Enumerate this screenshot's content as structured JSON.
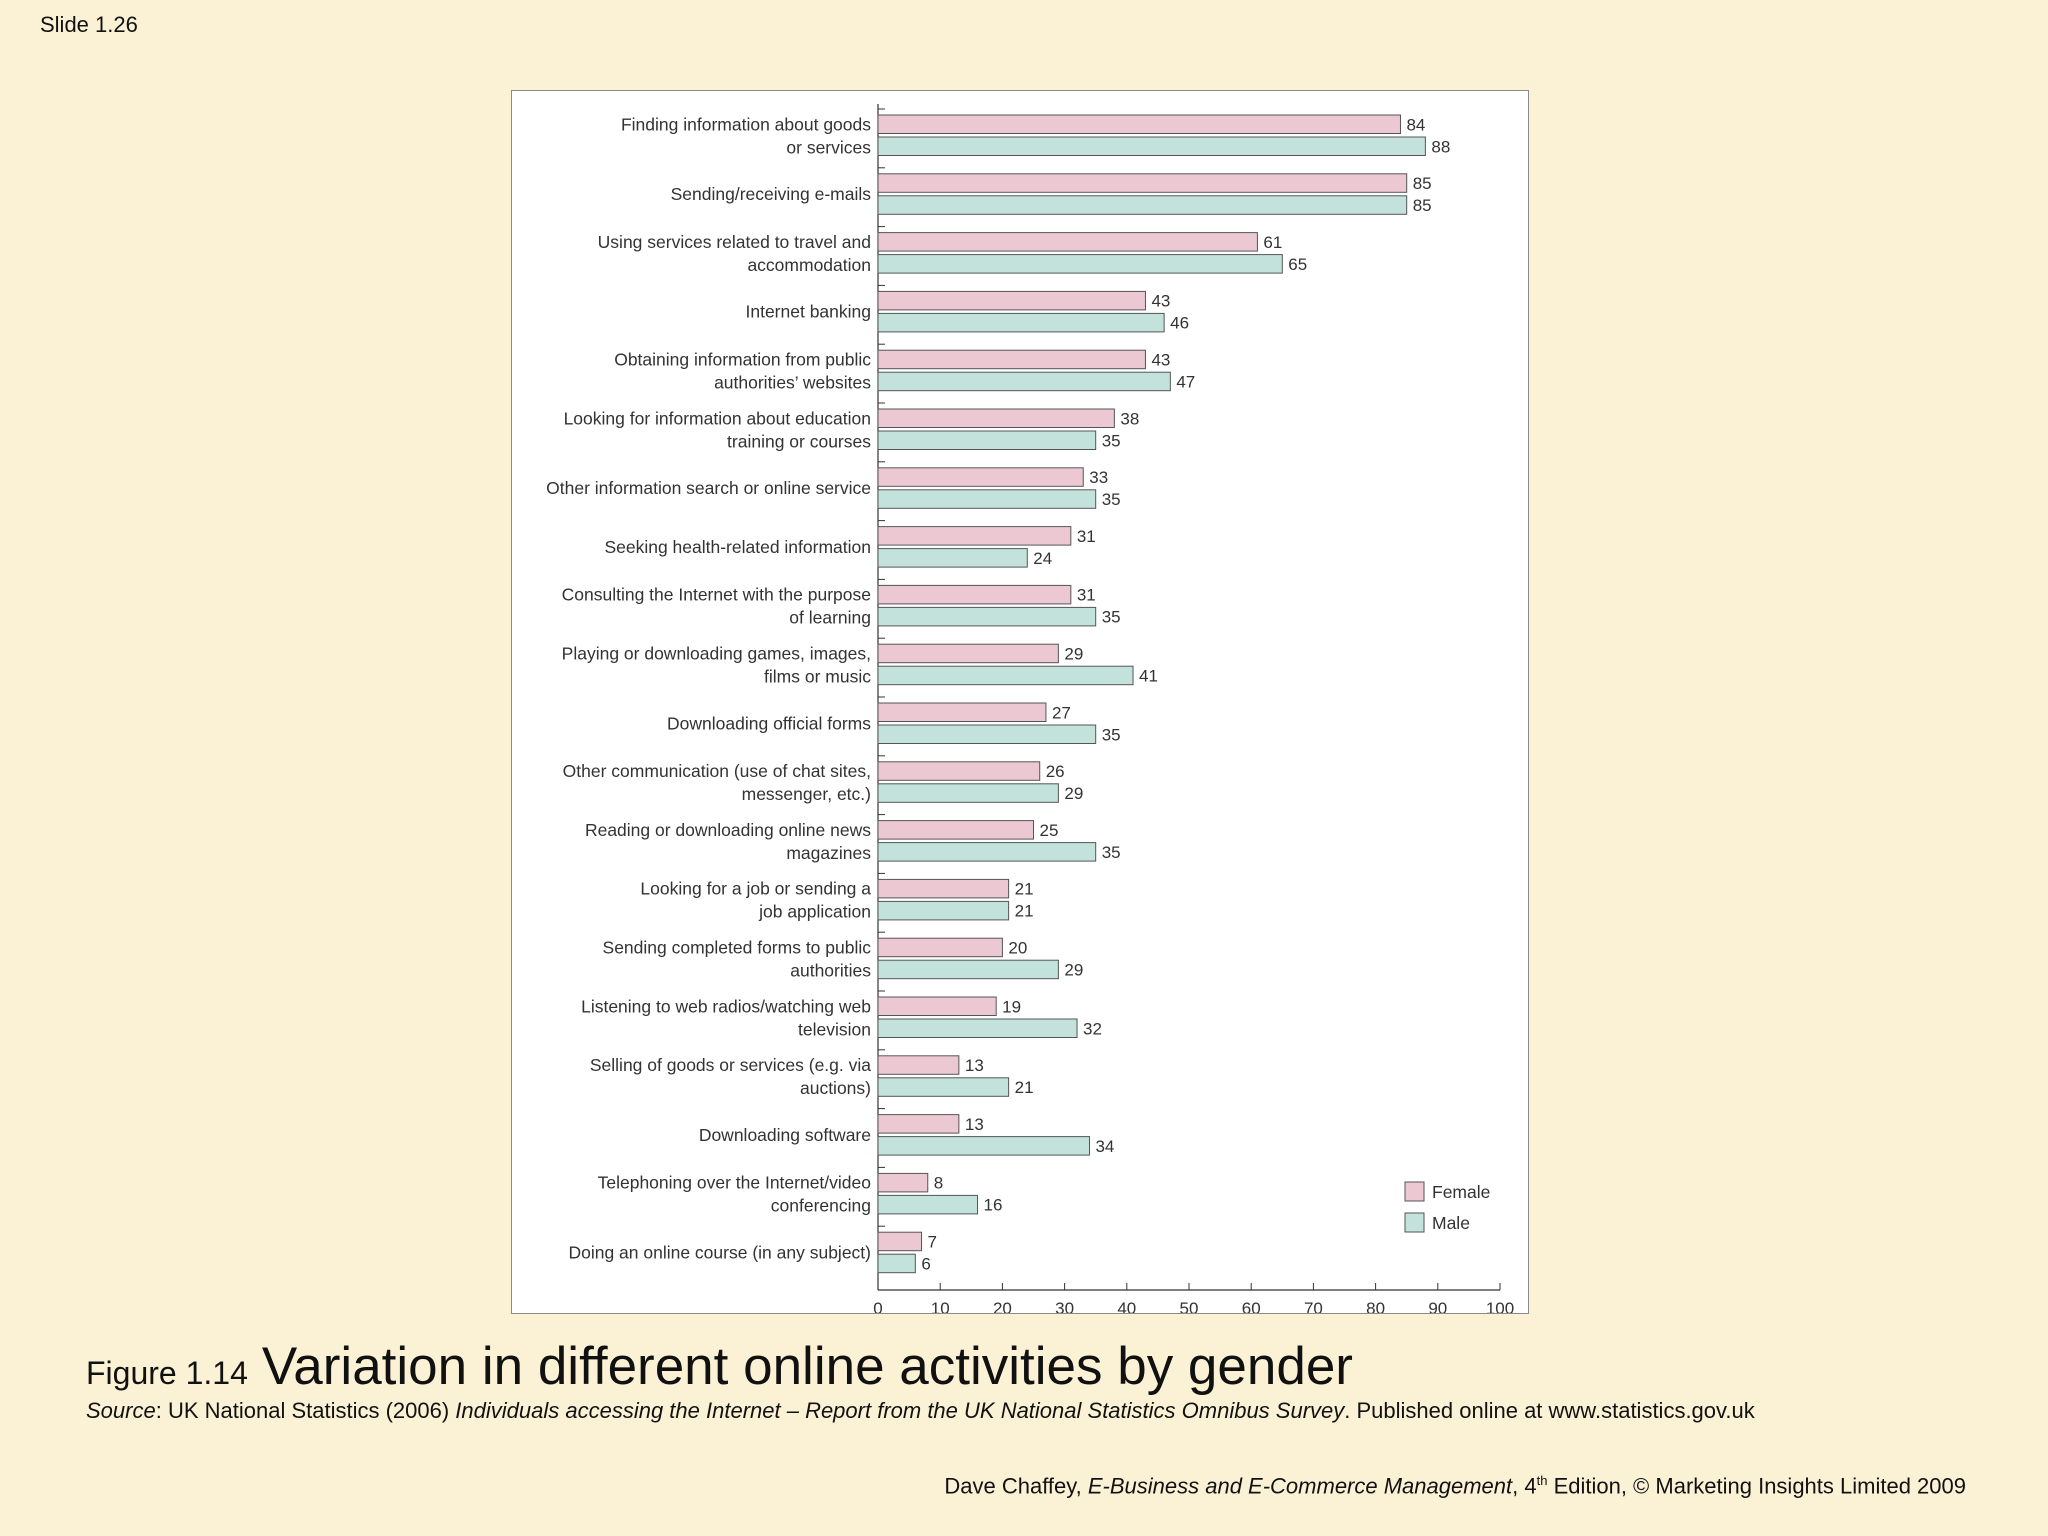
{
  "slide_label": "Slide 1.26",
  "caption": {
    "figure_label": "Figure 1.14",
    "title": "Variation in different online activities by gender"
  },
  "source": {
    "label": "Source",
    "text_1": ": UK National Statistics (2006) ",
    "report_title": "Individuals accessing the Internet – Report from the UK National Statistics Omnibus Survey",
    "text_2": ". Published online at www.statistics.gov.uk"
  },
  "footer": {
    "author": "Dave Chaffey, ",
    "book_title": "E-Business and E-Commerce Management",
    "edition_num": ", 4",
    "edition_sup": "th",
    "rest": " Edition, © Marketing Insights Limited 2009"
  },
  "colors": {
    "female": "#ecc8d2",
    "male": "#c4e2dc",
    "bar_stroke": "#555555",
    "axis": "#333333"
  },
  "chart_data": {
    "type": "bar",
    "orientation": "horizontal",
    "title": "",
    "xlabel": "",
    "ylabel": "",
    "xlim": [
      0,
      100
    ],
    "xticks": [
      0,
      10,
      20,
      30,
      40,
      50,
      60,
      70,
      80,
      90,
      100
    ],
    "legend_position": "bottom-right",
    "categories": [
      [
        "Finding information about goods",
        "or services"
      ],
      [
        "Sending/receiving e-mails"
      ],
      [
        "Using services related to travel and",
        "accommodation"
      ],
      [
        "Internet banking"
      ],
      [
        "Obtaining information from public",
        "authorities’ websites"
      ],
      [
        "Looking for information about education",
        "training or courses"
      ],
      [
        "Other information search or online service"
      ],
      [
        "Seeking health-related information"
      ],
      [
        "Consulting the Internet with the purpose",
        "of learning"
      ],
      [
        "Playing or downloading games, images,",
        "films or music"
      ],
      [
        "Downloading official forms"
      ],
      [
        "Other communication (use of chat sites,",
        "messenger, etc.)"
      ],
      [
        "Reading or downloading online news",
        "magazines"
      ],
      [
        "Looking for a job or sending a",
        "job application"
      ],
      [
        "Sending completed forms to public",
        "authorities"
      ],
      [
        "Listening to web radios/watching web",
        "television"
      ],
      [
        "Selling of goods or services (e.g. via",
        "auctions)"
      ],
      [
        "Downloading software"
      ],
      [
        "Telephoning over the Internet/video",
        "conferencing"
      ],
      [
        "Doing an online course (in any subject)"
      ]
    ],
    "series": [
      {
        "name": "Female",
        "values": [
          84,
          85,
          61,
          43,
          43,
          38,
          33,
          31,
          31,
          29,
          27,
          26,
          25,
          21,
          20,
          19,
          13,
          13,
          8,
          7
        ]
      },
      {
        "name": "Male",
        "values": [
          88,
          85,
          65,
          46,
          47,
          35,
          35,
          24,
          35,
          41,
          35,
          29,
          35,
          21,
          29,
          32,
          21,
          34,
          16,
          6
        ]
      }
    ]
  }
}
